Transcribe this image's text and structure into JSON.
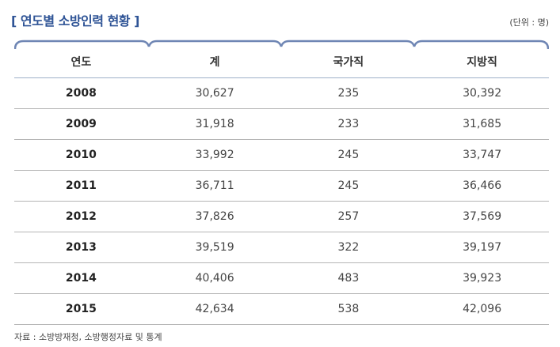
{
  "title": "[ 연도별 소방인력 현황 ]",
  "unit": "(단위 : 명)",
  "columns": [
    "연도",
    "계",
    "국가직",
    "지방직"
  ],
  "rows": [
    [
      "2008",
      "30,627",
      "235",
      "30,392"
    ],
    [
      "2009",
      "31,918",
      "233",
      "31,685"
    ],
    [
      "2010",
      "33,992",
      "245",
      "33,747"
    ],
    [
      "2011",
      "36,711",
      "245",
      "36,466"
    ],
    [
      "2012",
      "37,826",
      "257",
      "37,569"
    ],
    [
      "2013",
      "39,519",
      "322",
      "39,197"
    ],
    [
      "2014",
      "40,406",
      "483",
      "39,923"
    ],
    [
      "2015",
      "42,634",
      "538",
      "42,096"
    ]
  ],
  "source": "자료 : 소방방재청, 소방행정자료 및 통계",
  "colors": {
    "title": "#2f5496",
    "header_line": "#6f86b4"
  }
}
